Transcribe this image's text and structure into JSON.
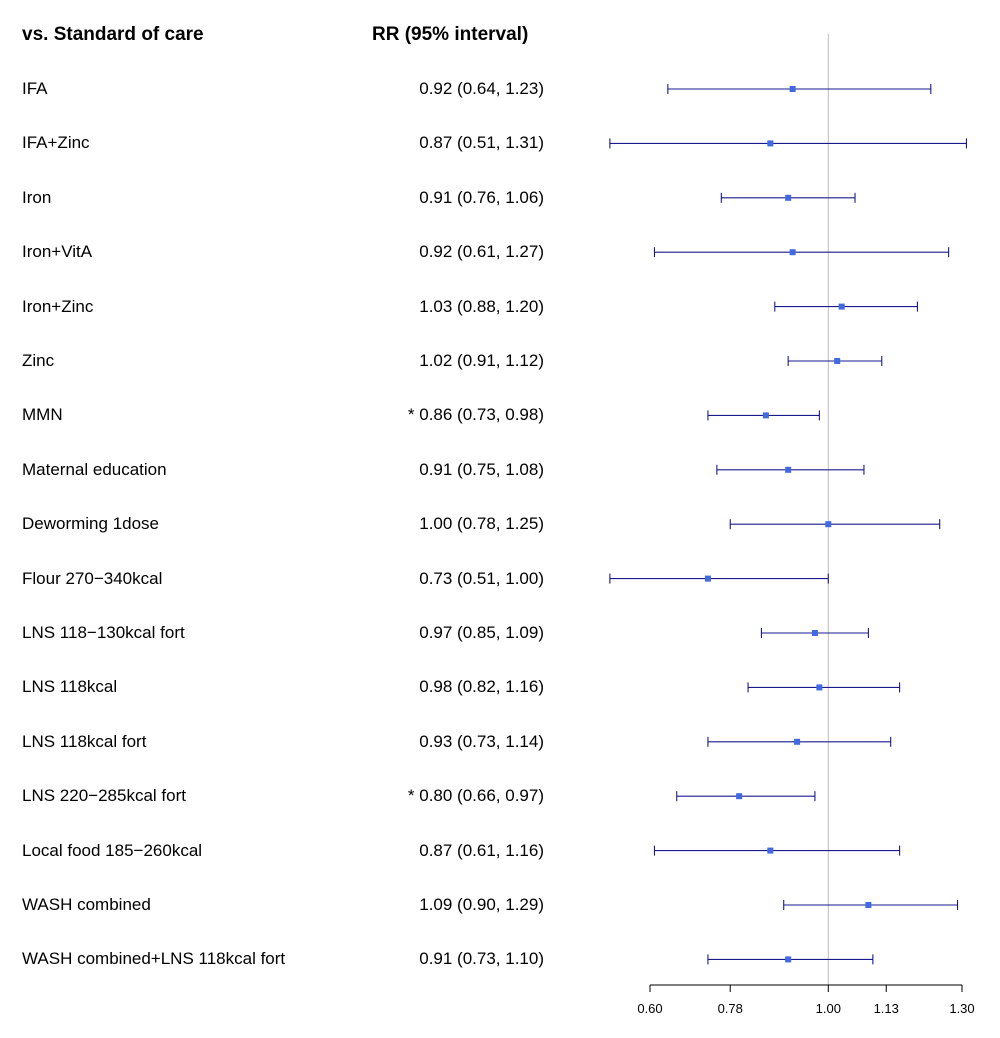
{
  "header": {
    "comparison_label": "vs. Standard of care",
    "estimate_label": "RR (95% interval)"
  },
  "chart_data": {
    "type": "forest",
    "xlim": [
      0.6,
      1.3
    ],
    "xaxis_ticks": [
      "0.60",
      "0.78",
      "1.00",
      "1.13",
      "1.30"
    ],
    "reference_line": 1.0,
    "colors": {
      "marker": "#4169E1",
      "whisker": "#1a1a8c",
      "axis": "#000000",
      "reference": "#bbbbbb"
    },
    "rows": [
      {
        "name": "IFA",
        "estimate_text": "0.92 (0.64, 1.23)",
        "rr": 0.92,
        "lo": 0.64,
        "hi": 1.23
      },
      {
        "name": "IFA+Zinc",
        "estimate_text": "0.87 (0.51, 1.31)",
        "rr": 0.87,
        "lo": 0.51,
        "hi": 1.31
      },
      {
        "name": "Iron",
        "estimate_text": "0.91 (0.76, 1.06)",
        "rr": 0.91,
        "lo": 0.76,
        "hi": 1.06
      },
      {
        "name": "Iron+VitA",
        "estimate_text": "0.92 (0.61, 1.27)",
        "rr": 0.92,
        "lo": 0.61,
        "hi": 1.27
      },
      {
        "name": "Iron+Zinc",
        "estimate_text": "1.03 (0.88, 1.20)",
        "rr": 1.03,
        "lo": 0.88,
        "hi": 1.2
      },
      {
        "name": "Zinc",
        "estimate_text": "1.02 (0.91, 1.12)",
        "rr": 1.02,
        "lo": 0.91,
        "hi": 1.12
      },
      {
        "name": "MMN",
        "estimate_text": "* 0.86 (0.73, 0.98)",
        "rr": 0.86,
        "lo": 0.73,
        "hi": 0.98
      },
      {
        "name": "Maternal education",
        "estimate_text": "0.91 (0.75, 1.08)",
        "rr": 0.91,
        "lo": 0.75,
        "hi": 1.08
      },
      {
        "name": "Deworming 1dose",
        "estimate_text": "1.00 (0.78, 1.25)",
        "rr": 1.0,
        "lo": 0.78,
        "hi": 1.25
      },
      {
        "name": "Flour 270−340kcal",
        "estimate_text": "0.73 (0.51, 1.00)",
        "rr": 0.73,
        "lo": 0.51,
        "hi": 1.0
      },
      {
        "name": "LNS 118−130kcal fort",
        "estimate_text": "0.97 (0.85, 1.09)",
        "rr": 0.97,
        "lo": 0.85,
        "hi": 1.09
      },
      {
        "name": "LNS 118kcal",
        "estimate_text": "0.98 (0.82, 1.16)",
        "rr": 0.98,
        "lo": 0.82,
        "hi": 1.16
      },
      {
        "name": "LNS 118kcal fort",
        "estimate_text": "0.93 (0.73, 1.14)",
        "rr": 0.93,
        "lo": 0.73,
        "hi": 1.14
      },
      {
        "name": "LNS 220−285kcal fort",
        "estimate_text": "* 0.80 (0.66, 0.97)",
        "rr": 0.8,
        "lo": 0.66,
        "hi": 0.97
      },
      {
        "name": "Local food 185−260kcal",
        "estimate_text": "0.87 (0.61, 1.16)",
        "rr": 0.87,
        "lo": 0.61,
        "hi": 1.16
      },
      {
        "name": "WASH combined",
        "estimate_text": "1.09 (0.90, 1.29)",
        "rr": 1.09,
        "lo": 0.9,
        "hi": 1.29
      },
      {
        "name": "WASH combined+LNS 118kcal fort",
        "estimate_text": "0.91 (0.73, 1.10)",
        "rr": 0.91,
        "lo": 0.73,
        "hi": 1.1
      }
    ]
  }
}
